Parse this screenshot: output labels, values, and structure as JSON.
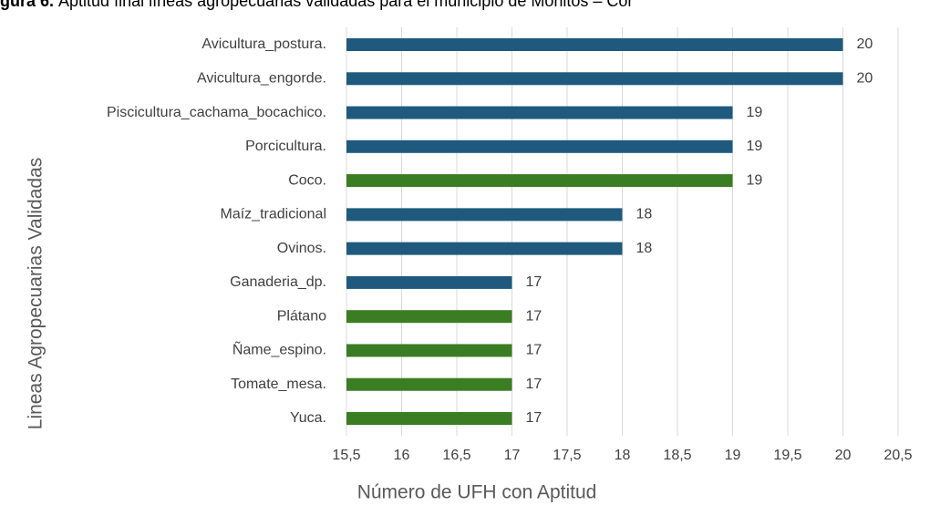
{
  "chart_data": {
    "type": "bar",
    "orientation": "horizontal",
    "title_label": "gura 6.",
    "title": "Aptitud final líneas agropecuarias validadas para el municipio de Moñitos – Cór",
    "xlabel": "Número de UFH con Aptitud",
    "ylabel": "Lineas Agropecuarias Validadas",
    "categories": [
      "Avicultura_postura.",
      "Avicultura_engorde.",
      "Piscicultura_cachama_bocachico.",
      "Porcicultura.",
      "Coco.",
      "Maíz_tradicional",
      "Ovinos.",
      "Ganaderia_dp.",
      "Plátano",
      "Ñame_espino.",
      "Tomate_mesa.",
      "Yuca."
    ],
    "values": [
      20,
      20,
      19,
      19,
      19,
      18,
      18,
      17,
      17,
      17,
      17,
      17
    ],
    "colors": [
      "#1f5a7e",
      "#1f5a7e",
      "#1f5a7e",
      "#1f5a7e",
      "#3b7d23",
      "#1f5a7e",
      "#1f5a7e",
      "#1f5a7e",
      "#3b7d23",
      "#3b7d23",
      "#3b7d23",
      "#3b7d23"
    ],
    "xlim": [
      15.5,
      20.5
    ],
    "xticks": [
      {
        "value": 15.5,
        "label": "15,5"
      },
      16,
      {
        "value": 16.5,
        "label": "16,5"
      },
      17,
      {
        "value": 17.5,
        "label": "17,5"
      },
      18,
      {
        "value": 18.5,
        "label": "18,5"
      },
      19,
      {
        "value": 19.5,
        "label": "19,5"
      },
      20,
      {
        "value": 20.5,
        "label": "20,5"
      }
    ],
    "grid": true
  }
}
